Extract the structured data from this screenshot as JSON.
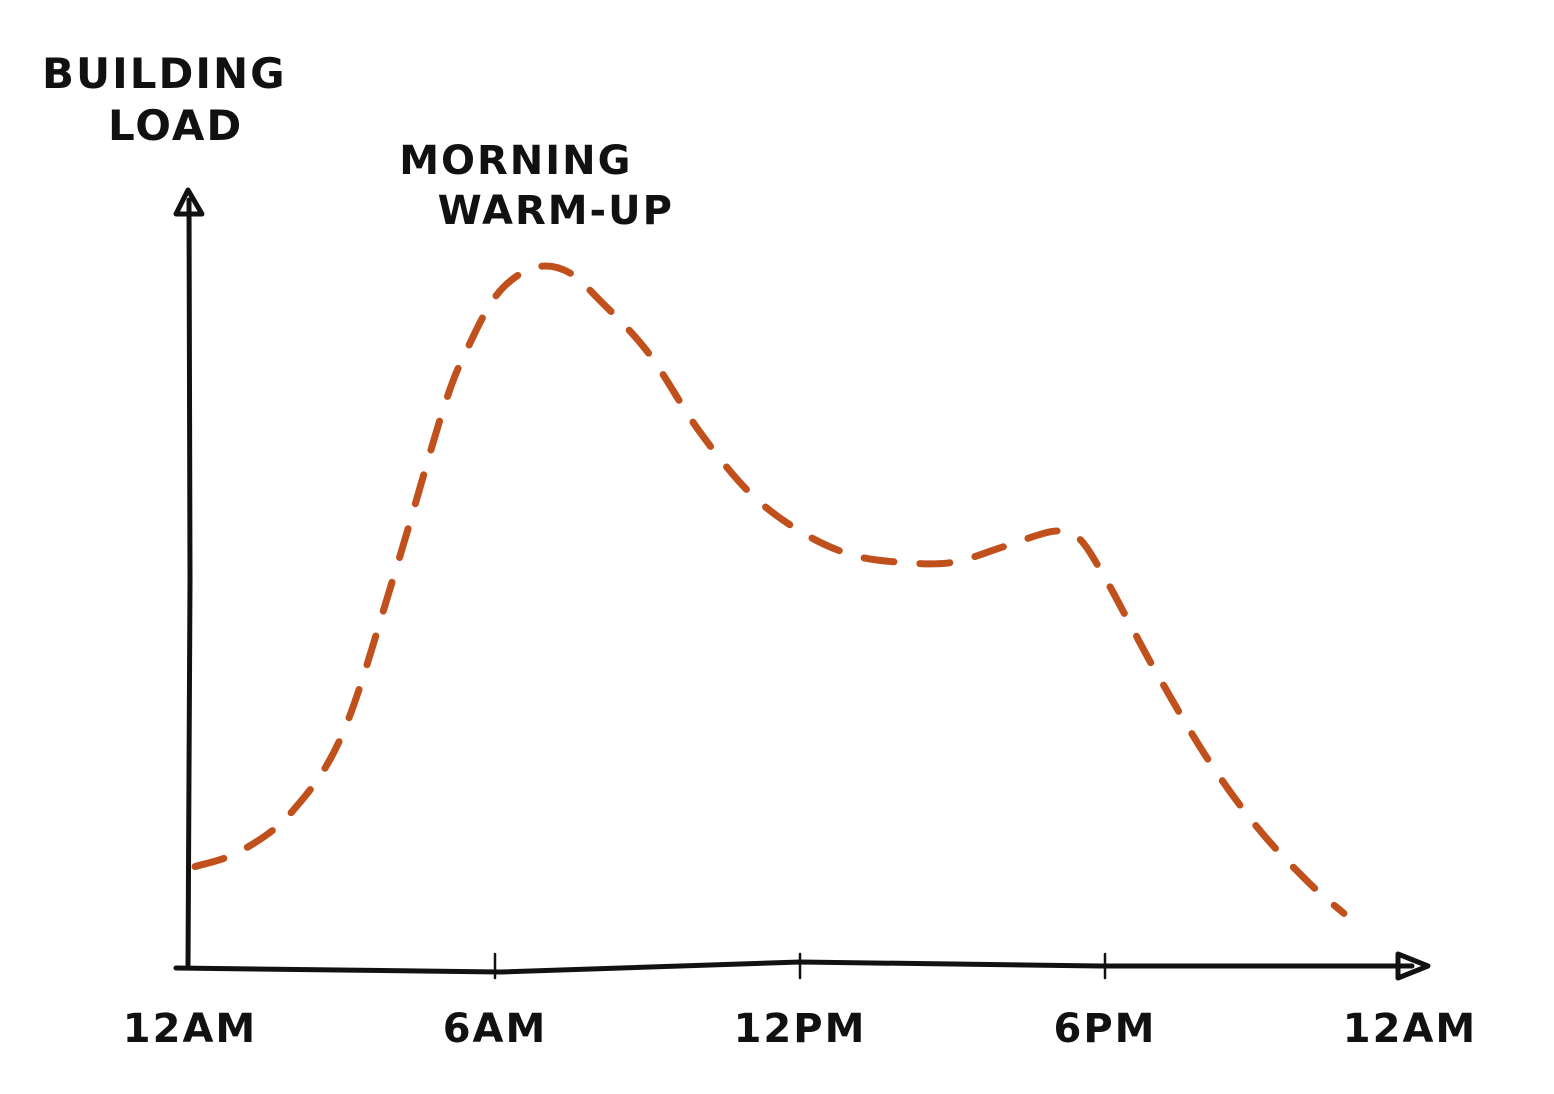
{
  "chart_data": {
    "type": "line",
    "title": "",
    "ylabel_lines": [
      "BUILDING",
      "LOAD"
    ],
    "xlabel": "",
    "x_tick_labels": [
      "12AM",
      "6AM",
      "12PM",
      "6PM",
      "12AM"
    ],
    "x_ticks_hours": [
      0,
      6,
      12,
      18,
      24
    ],
    "xlim": [
      0,
      24
    ],
    "ylim": [
      0,
      100
    ],
    "grid": false,
    "legend": "none",
    "series_color": "#C0501C",
    "series_style": "dashed",
    "series": [
      {
        "x": [
          0.1,
          1,
          2,
          3,
          4,
          5,
          5.5,
          6,
          6.5,
          7,
          7.5,
          8,
          9,
          10,
          11,
          12,
          13,
          14,
          15,
          16,
          17,
          17.5,
          18,
          18.5,
          19,
          20,
          21,
          22,
          22.7
        ],
        "y": [
          13,
          15,
          20,
          30,
          50,
          72,
          80,
          86,
          89,
          90,
          89,
          86,
          79,
          69,
          61,
          56,
          53,
          52,
          52,
          54,
          56,
          55,
          50,
          44,
          38,
          27,
          18,
          11,
          7
        ]
      }
    ],
    "annotations": [
      {
        "lines": [
          "MORNING",
          "WARM-UP"
        ],
        "x": 7,
        "y": 90
      }
    ]
  }
}
